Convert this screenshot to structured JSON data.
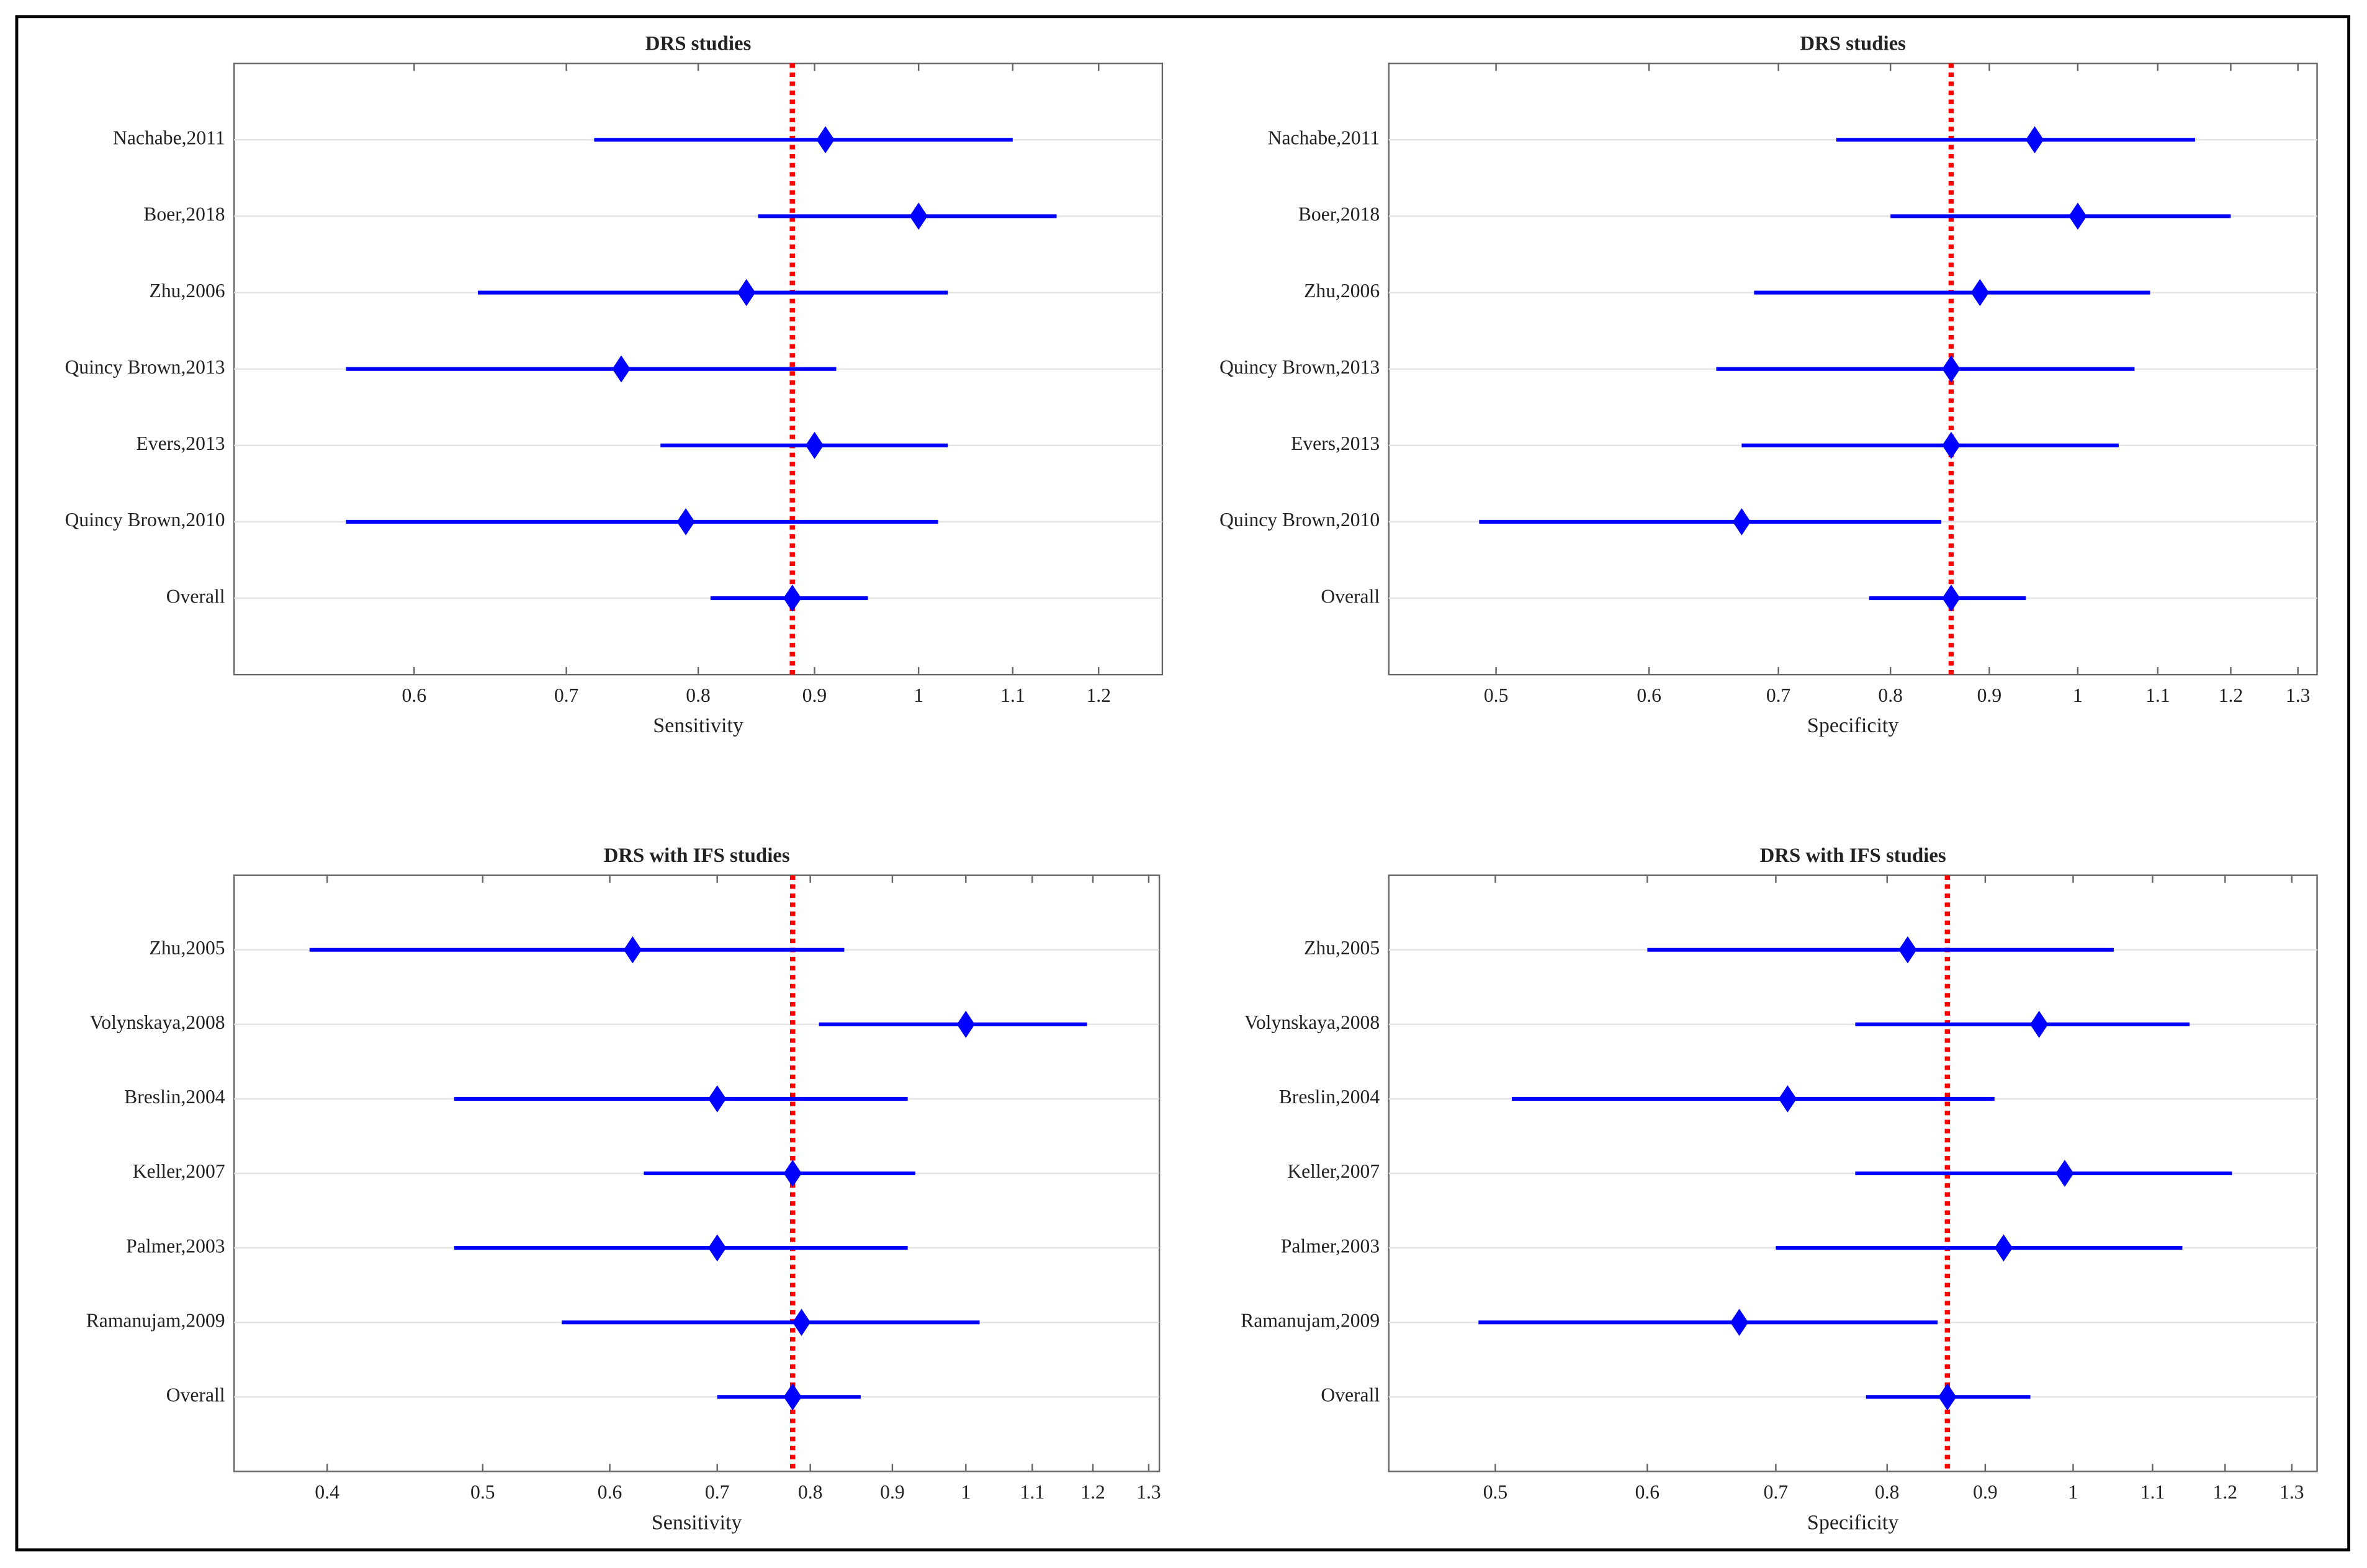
{
  "chart_data": [
    {
      "type": "forest",
      "title": "DRS studies",
      "xlabel": "Sensitivity",
      "categories": [
        "Nachabe,2011",
        "Boer,2018",
        "Zhu,2006",
        "Quincy Brown,2013",
        "Evers,2013",
        "Quincy Brown,2010",
        "Overall"
      ],
      "values": [
        0.91,
        1.0,
        0.84,
        0.74,
        0.9,
        0.79,
        0.88
      ],
      "lower": [
        0.72,
        0.85,
        0.64,
        0.56,
        0.77,
        0.56,
        0.81
      ],
      "upper": [
        1.1,
        1.15,
        1.03,
        0.92,
        1.03,
        1.02,
        0.95
      ],
      "reference": 0.88,
      "color": "#0000ff",
      "reference_color": "#ff0000",
      "xscale": "log",
      "xlim": [
        0.5,
        1.28
      ],
      "xticks": [
        0.6,
        0.7,
        0.8,
        0.9,
        1,
        1.1,
        1.2
      ],
      "grid": true
    },
    {
      "type": "forest",
      "title": "DRS studies",
      "xlabel": "Specificity",
      "categories": [
        "Nachabe,2011",
        "Boer,2018",
        "Zhu,2006",
        "Quincy Brown,2013",
        "Evers,2013",
        "Quincy Brown,2010",
        "Overall"
      ],
      "values": [
        0.95,
        1.0,
        0.89,
        0.86,
        0.86,
        0.67,
        0.86
      ],
      "lower": [
        0.75,
        0.8,
        0.68,
        0.65,
        0.67,
        0.49,
        0.78
      ],
      "upper": [
        1.15,
        1.2,
        1.09,
        1.07,
        1.05,
        0.85,
        0.94
      ],
      "reference": 0.86,
      "color": "#0000ff",
      "reference_color": "#ff0000",
      "xscale": "log",
      "xlim": [
        0.44,
        1.33
      ],
      "xticks": [
        0.5,
        0.6,
        0.7,
        0.8,
        0.9,
        1,
        1.1,
        1.2,
        1.3
      ],
      "grid": true
    },
    {
      "type": "forest",
      "title": "DRS with IFS studies",
      "xlabel": "Sensitivity",
      "categories": [
        "Zhu,2005",
        "Volynskaya,2008",
        "Breslin,2004",
        "Keller,2007",
        "Palmer,2003",
        "Ramanujam,2009",
        "Overall"
      ],
      "values": [
        0.62,
        1.0,
        0.7,
        0.78,
        0.7,
        0.79,
        0.78
      ],
      "lower": [
        0.39,
        0.81,
        0.48,
        0.63,
        0.48,
        0.56,
        0.7
      ],
      "upper": [
        0.84,
        1.19,
        0.92,
        0.93,
        0.92,
        1.02,
        0.86
      ],
      "reference": 0.78,
      "color": "#0000ff",
      "reference_color": "#ff0000",
      "xscale": "log",
      "xlim": [
        0.35,
        1.32
      ],
      "xticks": [
        0.4,
        0.5,
        0.6,
        0.7,
        0.8,
        0.9,
        1,
        1.1,
        1.2,
        1.3
      ],
      "grid": true
    },
    {
      "type": "forest",
      "title": "DRS with IFS studies",
      "xlabel": "Specificity",
      "categories": [
        "Zhu,2005",
        "Volynskaya,2008",
        "Breslin,2004",
        "Keller,2007",
        "Palmer,2003",
        "Ramanujam,2009",
        "Overall"
      ],
      "values": [
        0.82,
        0.96,
        0.71,
        0.99,
        0.92,
        0.67,
        0.86
      ],
      "lower": [
        0.6,
        0.77,
        0.51,
        0.77,
        0.7,
        0.49,
        0.78
      ],
      "upper": [
        1.05,
        1.15,
        0.91,
        1.21,
        1.14,
        0.85,
        0.95
      ],
      "reference": 0.86,
      "color": "#0000ff",
      "reference_color": "#ff0000",
      "xscale": "log",
      "xlim": [
        0.44,
        1.34
      ],
      "xticks": [
        0.5,
        0.6,
        0.7,
        0.8,
        0.9,
        1,
        1.1,
        1.2,
        1.3
      ],
      "grid": true
    }
  ]
}
